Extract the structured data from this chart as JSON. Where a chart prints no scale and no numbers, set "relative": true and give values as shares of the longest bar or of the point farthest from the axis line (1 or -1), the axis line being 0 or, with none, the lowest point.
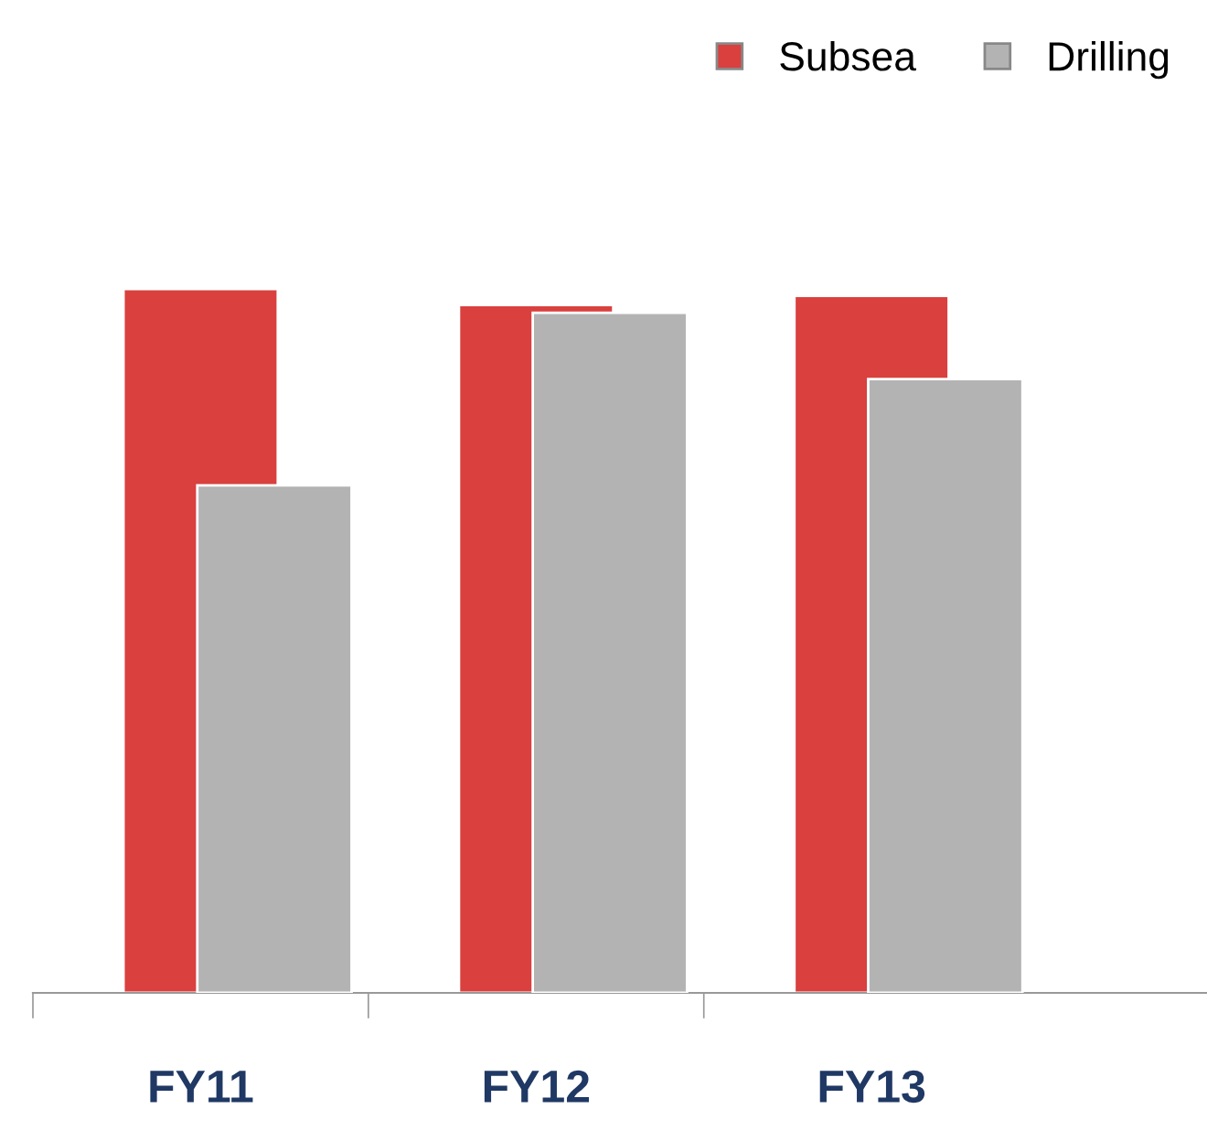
{
  "chart_data": {
    "type": "bar",
    "relative": true,
    "categories": [
      "FY11",
      "FY12",
      "FY13"
    ],
    "series": [
      {
        "name": "Subsea",
        "color": "#d9403e",
        "values": [
          1,
          0.977,
          0.99
        ]
      },
      {
        "name": "Drilling",
        "color": "#b3b3b3",
        "values": [
          0.721,
          0.966,
          0.872
        ]
      }
    ],
    "legend": "top right",
    "grid": false
  }
}
